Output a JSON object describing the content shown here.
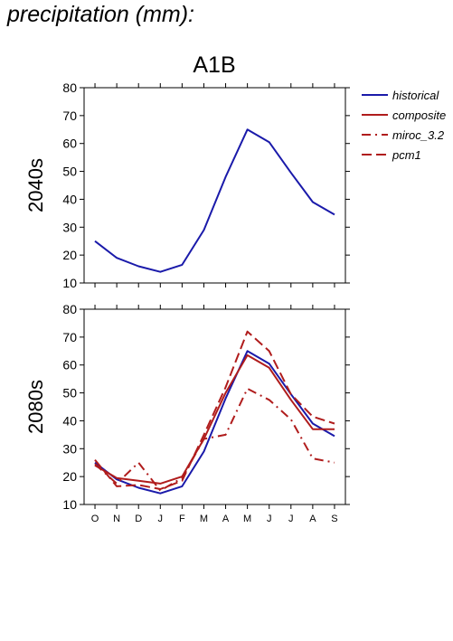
{
  "page": {
    "title": "precipitation (mm):"
  },
  "chart_data": {
    "type": "line",
    "title": "A1B",
    "categories": [
      "O",
      "N",
      "D",
      "J",
      "F",
      "M",
      "A",
      "M",
      "J",
      "J",
      "A",
      "S"
    ],
    "ylim": [
      10,
      80
    ],
    "yticks": [
      10,
      20,
      30,
      40,
      50,
      60,
      70,
      80
    ],
    "grid": false,
    "legend_position": "top-right, outside plot",
    "legend": [
      {
        "name": "historical",
        "color": "#1a1aaa",
        "style": "solid"
      },
      {
        "name": "composite",
        "color": "#b01c1c",
        "style": "solid"
      },
      {
        "name": "miroc_3.2",
        "color": "#b01c1c",
        "style": "dash-dot"
      },
      {
        "name": "pcm1",
        "color": "#b01c1c",
        "style": "dashed"
      }
    ],
    "panels": [
      {
        "label": "2040s",
        "series": [
          {
            "name": "historical",
            "values": [
              25,
              19,
              16,
              14,
              16.5,
              29,
              48,
              65,
              60.5,
              49.5,
              39,
              34.5
            ]
          }
        ]
      },
      {
        "label": "2080s",
        "series": [
          {
            "name": "historical",
            "values": [
              25,
              19,
              16,
              14,
              16.5,
              29,
              48,
              65,
              60.5,
              49.5,
              39,
              34.5
            ]
          },
          {
            "name": "composite",
            "values": [
              24,
              19.5,
              18.5,
              17.5,
              20,
              33.5,
              50,
              63.5,
              59,
              47.5,
              37,
              37
            ]
          },
          {
            "name": "miroc_3.2",
            "values": [
              24.5,
              17.5,
              25,
              15,
              19.5,
              33.5,
              35,
              51.5,
              47.5,
              40.5,
              26.5,
              25
            ]
          },
          {
            "name": "pcm1",
            "values": [
              26,
              16.5,
              17,
              15.5,
              18.5,
              35,
              52,
              72,
              65,
              49.5,
              41.5,
              39
            ]
          }
        ]
      }
    ]
  }
}
